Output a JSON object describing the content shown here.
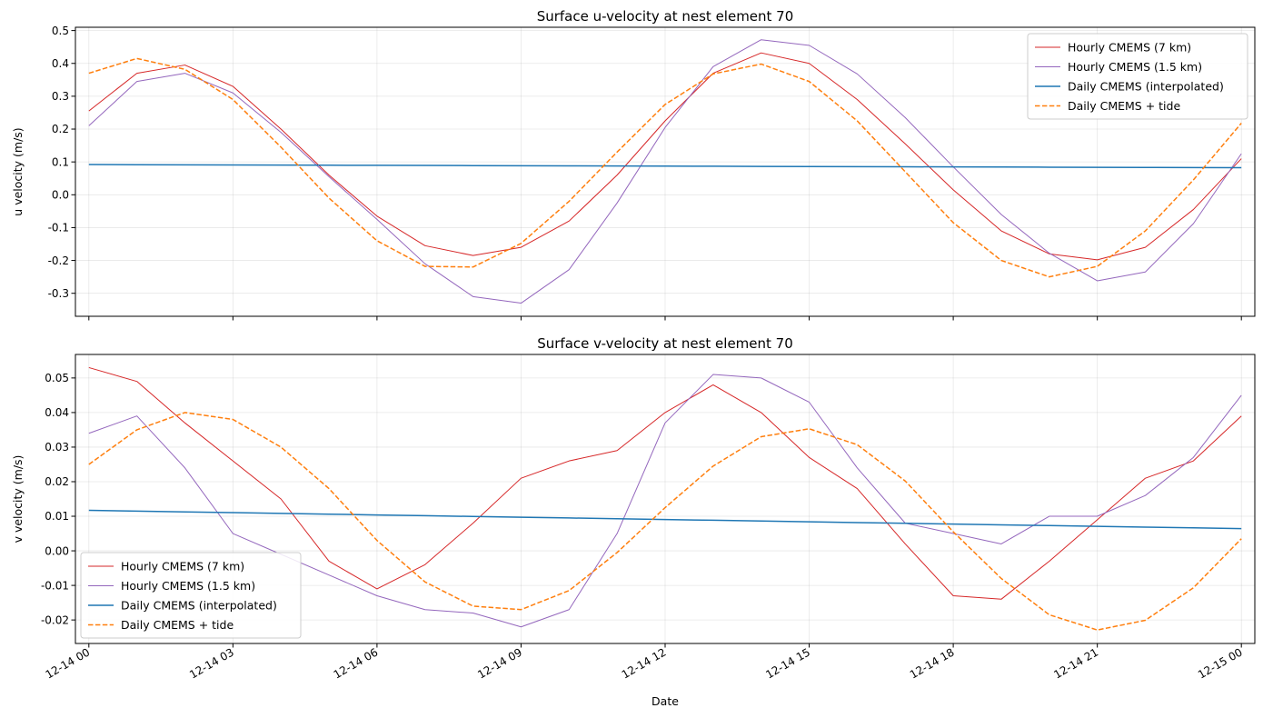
{
  "chart_data": [
    {
      "type": "line",
      "title": "Surface u-velocity at nest element 70",
      "xlabel": "",
      "ylabel": "u velocity (m/s)",
      "x": [
        "12-14 00",
        "12-14 01",
        "12-14 02",
        "12-14 03",
        "12-14 04",
        "12-14 05",
        "12-14 06",
        "12-14 07",
        "12-14 08",
        "12-14 09",
        "12-14 10",
        "12-14 11",
        "12-14 12",
        "12-14 13",
        "12-14 14",
        "12-14 15",
        "12-14 16",
        "12-14 17",
        "12-14 18",
        "12-14 19",
        "12-14 20",
        "12-14 21",
        "12-14 22",
        "12-14 23",
        "12-15 00"
      ],
      "xticks": [
        "12-14 00",
        "12-14 03",
        "12-14 06",
        "12-14 09",
        "12-14 12",
        "12-14 15",
        "12-14 18",
        "12-14 21",
        "12-15 00"
      ],
      "show_xtick_labels": false,
      "xlim": [
        -0.28,
        24.28
      ],
      "ylim": [
        -0.37,
        0.51
      ],
      "yticks": [
        "-0.3",
        "-0.2",
        "-0.1",
        "0.0",
        "0.1",
        "0.2",
        "0.3",
        "0.4",
        "0.5"
      ],
      "grid": true,
      "legend_position": "top-right",
      "series": [
        {
          "name": "Hourly CMEMS (7 km)",
          "color": "#d62728",
          "style": "solid",
          "values": [
            0.255,
            0.37,
            0.395,
            0.33,
            0.2,
            0.06,
            -0.065,
            -0.155,
            -0.185,
            -0.16,
            -0.08,
            0.06,
            0.225,
            0.37,
            0.432,
            0.4,
            0.29,
            0.155,
            0.015,
            -0.11,
            -0.18,
            -0.198,
            -0.16,
            -0.045,
            0.11
          ]
        },
        {
          "name": "Hourly CMEMS (1.5 km)",
          "color": "#9467bd",
          "style": "solid",
          "values": [
            0.21,
            0.345,
            0.37,
            0.31,
            0.19,
            0.055,
            -0.075,
            -0.21,
            -0.31,
            -0.33,
            -0.228,
            -0.025,
            0.205,
            0.39,
            0.472,
            0.455,
            0.368,
            0.235,
            0.085,
            -0.06,
            -0.178,
            -0.262,
            -0.235,
            -0.088,
            0.125
          ]
        },
        {
          "name": "Daily CMEMS (interpolated)",
          "color": "#1f77b4",
          "style": "solid",
          "values": [
            0.092,
            0.0916,
            0.0912,
            0.0908,
            0.0904,
            0.09,
            0.0896,
            0.0892,
            0.0888,
            0.0884,
            0.088,
            0.0876,
            0.0872,
            0.0868,
            0.0864,
            0.086,
            0.0856,
            0.0852,
            0.0848,
            0.0844,
            0.084,
            0.0836,
            0.0832,
            0.0828,
            0.0824
          ]
        },
        {
          "name": "Daily CMEMS + tide",
          "color": "#ff7f0e",
          "style": "dashed",
          "values": [
            0.37,
            0.415,
            0.382,
            0.29,
            0.145,
            -0.01,
            -0.14,
            -0.218,
            -0.22,
            -0.148,
            -0.02,
            0.13,
            0.275,
            0.368,
            0.398,
            0.345,
            0.225,
            0.07,
            -0.085,
            -0.2,
            -0.25,
            -0.218,
            -0.11,
            0.045,
            0.218
          ]
        }
      ]
    },
    {
      "type": "line",
      "title": "Surface v-velocity at nest element 70",
      "xlabel": "Date",
      "ylabel": "v velocity (m/s)",
      "x": [
        "12-14 00",
        "12-14 01",
        "12-14 02",
        "12-14 03",
        "12-14 04",
        "12-14 05",
        "12-14 06",
        "12-14 07",
        "12-14 08",
        "12-14 09",
        "12-14 10",
        "12-14 11",
        "12-14 12",
        "12-14 13",
        "12-14 14",
        "12-14 15",
        "12-14 16",
        "12-14 17",
        "12-14 18",
        "12-14 19",
        "12-14 20",
        "12-14 21",
        "12-14 22",
        "12-14 23",
        "12-15 00"
      ],
      "xticks": [
        "12-14 00",
        "12-14 03",
        "12-14 06",
        "12-14 09",
        "12-14 12",
        "12-14 15",
        "12-14 18",
        "12-14 21",
        "12-15 00"
      ],
      "show_xtick_labels": true,
      "xlim": [
        -0.28,
        24.28
      ],
      "ylim": [
        -0.0268,
        0.0568
      ],
      "yticks": [
        "-0.02",
        "-0.01",
        "0.00",
        "0.01",
        "0.02",
        "0.03",
        "0.04",
        "0.05"
      ],
      "grid": true,
      "legend_position": "bottom-left",
      "series": [
        {
          "name": "Hourly CMEMS (7 km)",
          "color": "#d62728",
          "style": "solid",
          "values": [
            0.053,
            0.049,
            0.037,
            0.026,
            0.015,
            -0.003,
            -0.011,
            -0.004,
            0.008,
            0.021,
            0.026,
            0.029,
            0.04,
            0.048,
            0.04,
            0.027,
            0.018,
            0.002,
            -0.013,
            -0.014,
            -0.003,
            0.009,
            0.021,
            0.026,
            0.039
          ]
        },
        {
          "name": "Hourly CMEMS (1.5 km)",
          "color": "#9467bd",
          "style": "solid",
          "values": [
            0.034,
            0.039,
            0.024,
            0.005,
            -0.001,
            -0.007,
            -0.013,
            -0.017,
            -0.018,
            -0.022,
            -0.017,
            0.005,
            0.037,
            0.051,
            0.05,
            0.043,
            0.024,
            0.008,
            0.005,
            0.002,
            0.01,
            0.01,
            0.016,
            0.027,
            0.045
          ]
        },
        {
          "name": "Daily CMEMS (interpolated)",
          "color": "#1f77b4",
          "style": "solid",
          "values": [
            0.0117,
            0.01148,
            0.01126,
            0.01104,
            0.01082,
            0.0106,
            0.01038,
            0.01016,
            0.00994,
            0.00972,
            0.0095,
            0.00928,
            0.00906,
            0.00884,
            0.00862,
            0.0084,
            0.00818,
            0.00796,
            0.00774,
            0.00752,
            0.0073,
            0.00708,
            0.00686,
            0.00664,
            0.00642
          ]
        },
        {
          "name": "Daily CMEMS + tide",
          "color": "#ff7f0e",
          "style": "dashed",
          "values": [
            0.025,
            0.035,
            0.04,
            0.038,
            0.03,
            0.018,
            0.003,
            -0.009,
            -0.016,
            -0.017,
            -0.0115,
            -0.0005,
            0.0125,
            0.0245,
            0.033,
            0.0353,
            0.0307,
            0.0202,
            0.0055,
            -0.008,
            -0.0185,
            -0.0229,
            -0.0201,
            -0.0107,
            0.0035
          ]
        }
      ]
    }
  ]
}
